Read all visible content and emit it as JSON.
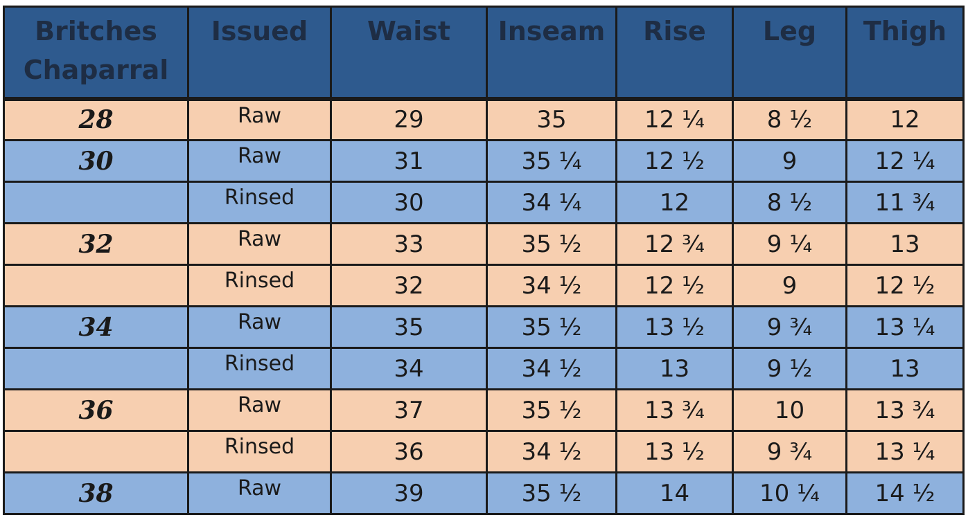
{
  "header": {
    "columns": [
      "Britches Chaparral",
      "Issued",
      "Waist",
      "Inseam",
      "Rise",
      "Leg",
      "Thigh"
    ]
  },
  "colors": {
    "header_bg": "#2e5a8e",
    "header_text": "#1e2d44",
    "row_peach": "#f7cfb0",
    "row_blue": "#8eb1dd"
  },
  "rows": [
    {
      "size": "28",
      "issued": "Raw",
      "waist": "29",
      "inseam": "35",
      "rise": "12 ¼",
      "leg": "8 ½",
      "thigh": "12",
      "shade": "peach"
    },
    {
      "size": "30",
      "issued": "Raw",
      "waist": "31",
      "inseam": "35 ¼",
      "rise": "12 ½",
      "leg": "9",
      "thigh": "12 ¼",
      "shade": "blue"
    },
    {
      "size": "",
      "issued": "Rinsed",
      "waist": "30",
      "inseam": "34 ¼",
      "rise": "12",
      "leg": "8 ½",
      "thigh": "11 ¾",
      "shade": "blue"
    },
    {
      "size": "32",
      "issued": "Raw",
      "waist": "33",
      "inseam": "35 ½",
      "rise": "12 ¾",
      "leg": "9 ¼",
      "thigh": "13",
      "shade": "peach"
    },
    {
      "size": "",
      "issued": "Rinsed",
      "waist": "32",
      "inseam": "34 ½",
      "rise": "12 ½",
      "leg": "9",
      "thigh": "12 ½",
      "shade": "peach"
    },
    {
      "size": "34",
      "issued": "Raw",
      "waist": "35",
      "inseam": "35 ½",
      "rise": "13 ½",
      "leg": "9 ¾",
      "thigh": "13 ¼",
      "shade": "blue"
    },
    {
      "size": "",
      "issued": "Rinsed",
      "waist": "34",
      "inseam": "34 ½",
      "rise": "13",
      "leg": "9 ½",
      "thigh": "13",
      "shade": "blue"
    },
    {
      "size": "36",
      "issued": "Raw",
      "waist": "37",
      "inseam": "35 ½",
      "rise": "13 ¾",
      "leg": "10",
      "thigh": "13 ¾",
      "shade": "peach"
    },
    {
      "size": "",
      "issued": "Rinsed",
      "waist": "36",
      "inseam": "34 ½",
      "rise": "13 ½",
      "leg": "9 ¾",
      "thigh": "13 ¼",
      "shade": "peach"
    },
    {
      "size": "38",
      "issued": "Raw",
      "waist": "39",
      "inseam": "35 ½",
      "rise": "14",
      "leg": "10 ¼",
      "thigh": "14 ½",
      "shade": "blue"
    }
  ]
}
